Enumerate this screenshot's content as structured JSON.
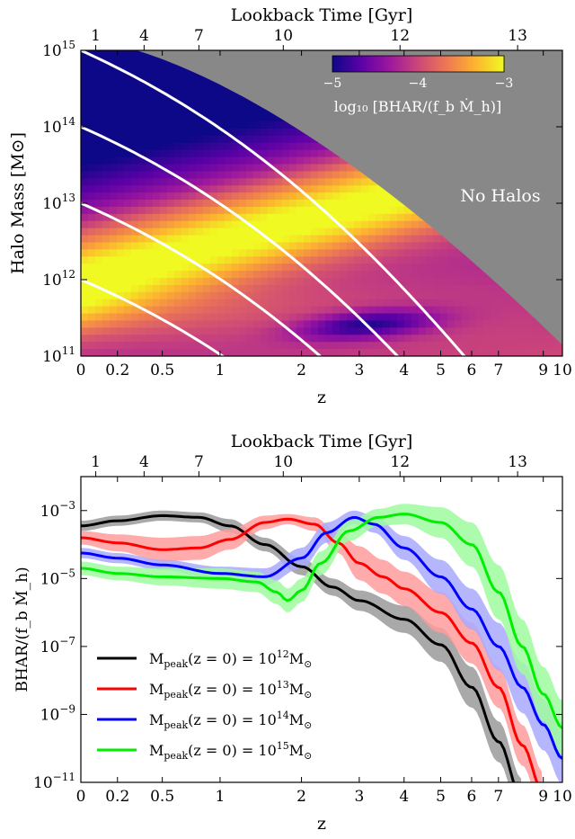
{
  "chart_data": [
    {
      "type": "heatmap",
      "xlabel": "z",
      "ylabel": "Halo Mass [M⊙]",
      "top_axis_label": "Lookback Time [Gyr]",
      "x_scale": "log(1+z)",
      "y_scale": "log",
      "xlim": [
        0,
        10
      ],
      "ylim": [
        100000000000.0,
        1000000000000000.0
      ],
      "x_ticks": [
        {
          "v": 0,
          "label": "0"
        },
        {
          "v": 0.2,
          "label": "0.2"
        },
        {
          "v": 0.5,
          "label": "0.5"
        },
        {
          "v": 1,
          "label": "1"
        },
        {
          "v": 2,
          "label": "2"
        },
        {
          "v": 3,
          "label": "3"
        },
        {
          "v": 4,
          "label": "4"
        },
        {
          "v": 5,
          "label": "5"
        },
        {
          "v": 6,
          "label": "6"
        },
        {
          "v": 7,
          "label": "7"
        },
        {
          "v": 9,
          "label": "9"
        },
        {
          "v": 10,
          "label": "10"
        }
      ],
      "top_ticks": [
        {
          "z": 0.077,
          "label": "1"
        },
        {
          "z": 0.37,
          "label": "4"
        },
        {
          "z": 0.8,
          "label": "7"
        },
        {
          "z": 1.74,
          "label": "10"
        },
        {
          "z": 3.9,
          "label": "12"
        },
        {
          "z": 7.8,
          "label": "13"
        }
      ],
      "y_ticks": [
        {
          "exp": 11,
          "base": "10",
          "sup": "11"
        },
        {
          "exp": 12,
          "base": "10",
          "sup": "12"
        },
        {
          "exp": 13,
          "base": "10",
          "sup": "13"
        },
        {
          "exp": 14,
          "base": "10",
          "sup": "14"
        },
        {
          "exp": 15,
          "base": "10",
          "sup": "15"
        }
      ],
      "colorbar": {
        "range": [
          -5,
          -3
        ],
        "tick_labels": [
          "−5",
          "−4",
          "−3"
        ],
        "label": "log₁₀ [BHAR/(f_b Ṁ_h)]",
        "colors": [
          "#0d0887",
          "#5c01a6",
          "#9c179e",
          "#cc4778",
          "#ed7953",
          "#fdb42f",
          "#f0f921"
        ]
      },
      "no_halo_text": "No Halos",
      "no_halo_color": "#888888",
      "tracks_z0_log_mass": [
        12,
        13,
        14,
        15
      ]
    },
    {
      "type": "line",
      "xlabel": "z",
      "ylabel": "BHAR/(f_b Ṁ_h)",
      "top_axis_label": "Lookback Time [Gyr]",
      "x_scale": "log(1+z)",
      "y_scale": "log",
      "xlim": [
        0,
        10
      ],
      "ylim": [
        1e-11,
        0.01
      ],
      "y_ticks": [
        {
          "exp": -11,
          "base": "10",
          "sup": "−11"
        },
        {
          "exp": -9,
          "base": "10",
          "sup": "−9"
        },
        {
          "exp": -7,
          "base": "10",
          "sup": "−7"
        },
        {
          "exp": -5,
          "base": "10",
          "sup": "−5"
        },
        {
          "exp": -3,
          "base": "10",
          "sup": "−3"
        }
      ],
      "series": [
        {
          "name": "M_peak(z=0) = 10^12 M⊙",
          "legend_base": "10",
          "legend_sup": "12",
          "color": "#000000",
          "band_color": "#9a9a9a",
          "x": [
            0,
            0.2,
            0.5,
            0.8,
            1.1,
            1.5,
            2.0,
            2.5,
            3.0,
            4.0,
            5.0,
            6.0,
            7.0,
            8.0
          ],
          "y_log": [
            -3.45,
            -3.3,
            -3.15,
            -3.2,
            -3.45,
            -4.0,
            -4.65,
            -5.25,
            -5.65,
            -6.2,
            -6.95,
            -8.2,
            -9.8,
            -11.5
          ],
          "band_width": [
            0.15,
            0.15,
            0.15,
            0.15,
            0.2,
            0.2,
            0.25,
            0.25,
            0.3,
            0.4,
            0.5,
            0.6,
            0.6,
            0.6
          ]
        },
        {
          "name": "M_peak(z=0) = 10^13 M⊙",
          "legend_base": "10",
          "legend_sup": "13",
          "color": "#ff0000",
          "band_color": "#ff9c9c",
          "x": [
            0,
            0.2,
            0.5,
            0.8,
            1.1,
            1.5,
            1.8,
            2.2,
            2.6,
            3.0,
            3.5,
            4.0,
            5.0,
            6.0,
            7.0,
            8.0,
            9.0
          ],
          "y_log": [
            -3.8,
            -3.95,
            -4.15,
            -4.1,
            -3.85,
            -3.35,
            -3.25,
            -3.4,
            -3.95,
            -4.55,
            -4.95,
            -5.3,
            -6.0,
            -6.9,
            -8.2,
            -9.9,
            -11.3
          ],
          "band_width": [
            0.2,
            0.25,
            0.35,
            0.35,
            0.3,
            0.2,
            0.15,
            0.2,
            0.3,
            0.5,
            0.5,
            0.5,
            0.6,
            0.6,
            0.6,
            0.6,
            0.6
          ]
        },
        {
          "name": "M_peak(z=0) = 10^14 M⊙",
          "legend_base": "10",
          "legend_sup": "14",
          "color": "#0000ff",
          "band_color": "#a9a9ff",
          "x": [
            0,
            0.2,
            0.5,
            1.0,
            1.5,
            2.0,
            2.4,
            2.9,
            3.3,
            4.0,
            5.0,
            6.0,
            7.0,
            8.0,
            9.0,
            10.0
          ],
          "y_log": [
            -4.25,
            -4.4,
            -4.6,
            -4.85,
            -4.95,
            -4.4,
            -3.65,
            -3.2,
            -3.4,
            -4.1,
            -4.95,
            -5.9,
            -7.0,
            -8.2,
            -9.3,
            -10.3
          ],
          "band_width": [
            0.15,
            0.15,
            0.15,
            0.2,
            0.25,
            0.3,
            0.3,
            0.2,
            0.25,
            0.35,
            0.5,
            0.6,
            0.7,
            0.75,
            0.75,
            0.75
          ]
        },
        {
          "name": "M_peak(z=0) = 10^15 M⊙",
          "legend_base": "10",
          "legend_sup": "15",
          "color": "#00ee00",
          "band_color": "#9ffc9f",
          "x": [
            0,
            0.2,
            0.5,
            1.0,
            1.4,
            1.65,
            1.8,
            2.0,
            2.3,
            2.8,
            3.4,
            4.0,
            5.0,
            6.0,
            7.0,
            8.0,
            9.0,
            10.0
          ],
          "y_log": [
            -4.7,
            -4.85,
            -4.95,
            -5.0,
            -5.1,
            -5.4,
            -5.65,
            -5.35,
            -4.55,
            -3.6,
            -3.2,
            -3.1,
            -3.35,
            -4.0,
            -5.4,
            -7.0,
            -8.4,
            -9.4
          ],
          "band_width": [
            0.2,
            0.2,
            0.25,
            0.3,
            0.3,
            0.35,
            0.35,
            0.35,
            0.35,
            0.3,
            0.25,
            0.3,
            0.45,
            0.65,
            0.8,
            0.8,
            0.8,
            0.8
          ]
        }
      ]
    }
  ]
}
